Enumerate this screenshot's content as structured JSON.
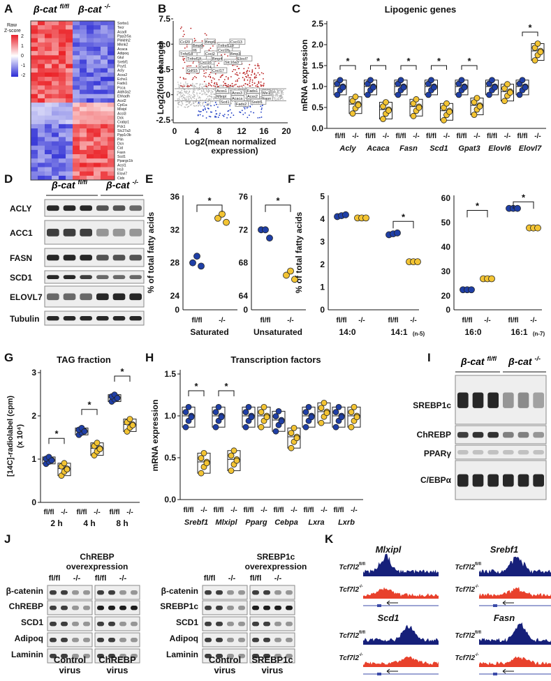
{
  "colors": {
    "flfl": "#1f3fa6",
    "ko": "#f3c433",
    "red": "#e01f26",
    "blue": "#1636c2",
    "heat_hi": "#e8202a",
    "heat_lo": "#2b2bd6",
    "mid": "#ffffff"
  },
  "panel_labels": {
    "A": "A",
    "B": "B",
    "C": "C",
    "D": "D",
    "E": "E",
    "F": "F",
    "G": "G",
    "H": "H",
    "I": "I",
    "J": "J",
    "K": "K"
  },
  "common": {
    "flfl": "fl/fl",
    "ko": "-/-",
    "beta_cat": "β-cat",
    "sup_flfl": "fl/fl",
    "sup_ko": "-/-",
    "star": "*"
  },
  "A": {
    "legend_title_1": "Raw",
    "legend_title_2": "Z-score",
    "legend_ticks": [
      "2",
      "1",
      "0",
      "-1",
      "-2"
    ],
    "genes": [
      "Sorbs1",
      "Tecr",
      "Acadl",
      "Ppp2r5a",
      "Plekhh2",
      "Mknk2",
      "Acaca",
      "Adipoq",
      "Glul",
      "Srebf1",
      "Pcyt1",
      "Acly",
      "Acss2",
      "Echs1",
      "Fads1",
      "Pcca",
      "Aldh3a2",
      "Ehhadh",
      "Acsl2",
      "Cpt1a",
      "Mlxipl",
      "Acsl3",
      "Dck",
      "Crabp1",
      "Pck1",
      "Slc27a3",
      "Ppp1r3b",
      "Plin",
      "Dcn",
      "Cat",
      "Fasn",
      "Scd1",
      "Ppargc1b",
      "Acsl1",
      "Irs3",
      "Elovl7",
      "Cidx"
    ]
  },
  "B": {
    "ylabel": "Log2(fold change)",
    "xlabel_1": "Log2(mean normalized",
    "xlabel_2": "expression)",
    "xticks": [
      "0",
      "4",
      "8",
      "12",
      "16",
      "20"
    ],
    "yticks": [
      "7.5",
      "5.0",
      "2.5",
      "0",
      "-2.5"
    ],
    "up_labels": [
      "Ccl20",
      "Bmp8",
      "Bmp6",
      "Tnfrsf11b",
      "Cxcl13",
      "Tnfsf18",
      "Il6",
      "Cxcl2",
      "Cxcl2b",
      "Bmp3",
      "Tnfrsf19",
      "Cxcl16",
      "Bmp4",
      "Slc16a3",
      "Elovl7",
      "Gdf15",
      "Cxcl14",
      "Cxcl17"
    ],
    "down_labels": [
      "Acss1",
      "Acss3",
      "Fads1",
      "Me1",
      "Mlxipl",
      "Acaca",
      "Acss2",
      "Fasn",
      "Scd1",
      "Fads2",
      "Srebf1"
    ]
  },
  "C": {
    "title": "Lipogenic genes",
    "ylabel": "mRNA expression",
    "yticks": [
      "2.5",
      "2.0",
      "1.5",
      "1.0",
      "0.5",
      "0.0"
    ],
    "genes": [
      "Acly",
      "Acaca",
      "Fasn",
      "Scd1",
      "Gpat3",
      "Elovl6",
      "Elovl7"
    ],
    "flfl_medians": [
      1.0,
      1.0,
      1.0,
      1.0,
      1.0,
      1.0,
      1.0
    ],
    "ko_medians": [
      0.58,
      0.45,
      0.52,
      0.42,
      0.55,
      0.88,
      1.85
    ],
    "sig": [
      true,
      true,
      true,
      true,
      true,
      false,
      true
    ]
  },
  "D": {
    "bands": [
      "ACLY",
      "ACC1",
      "FASN",
      "SCD1",
      "ELOVL7",
      "Tubulin"
    ]
  },
  "E": {
    "ylabel": "% of total fatty acids",
    "groups": [
      {
        "name": "Saturated",
        "yticks": [
          "36",
          "32",
          "28",
          "24",
          "0"
        ],
        "flfl": [
          28,
          28.8,
          27.6
        ],
        "ko": [
          33.4,
          33.9,
          32.9
        ]
      },
      {
        "name": "Unsaturated",
        "yticks": [
          "76",
          "72",
          "68",
          "64",
          "0"
        ],
        "flfl": [
          72,
          72,
          71
        ],
        "ko": [
          66.5,
          67,
          66
        ]
      }
    ]
  },
  "F": {
    "ylabel": "% of total fatty acids",
    "left_yticks": [
      "5",
      "4",
      "3",
      "2",
      "1",
      "0"
    ],
    "right_yticks": [
      "60",
      "50",
      "40",
      "30",
      "20",
      "0"
    ],
    "groups": [
      "14:0",
      "14:1",
      "16:0",
      "16:1"
    ],
    "group_subs": [
      "",
      "(n-5)",
      "",
      "(n-7)"
    ],
    "left_flfl": [
      4.15,
      3.35
    ],
    "left_ko": [
      4.05,
      2.12
    ],
    "right_flfl": [
      22.5,
      55.8
    ],
    "right_ko": [
      27,
      47.8
    ]
  },
  "G": {
    "title": "TAG fraction",
    "ylabel_1": "[14C]-radiolabel (cpm)",
    "ylabel_2": "(x 10⁴)",
    "yticks": [
      "3",
      "2",
      "1",
      "0"
    ],
    "times": [
      "2 h",
      "4 h",
      "8 h"
    ],
    "flfl_medians": [
      0.98,
      1.65,
      2.42
    ],
    "ko_medians": [
      0.78,
      1.25,
      1.8
    ]
  },
  "H": {
    "title": "Transcription factors",
    "ylabel": "mRNA expression",
    "yticks": [
      "1.5",
      "1.0",
      "0.5",
      "0.0"
    ],
    "genes": [
      "Srebf1",
      "Mlxipl",
      "Pparg",
      "Cebpa",
      "Lxra",
      "Lxrb"
    ],
    "flfl_medians": [
      1.0,
      1.0,
      1.0,
      0.95,
      1.0,
      1.0
    ],
    "ko_medians": [
      0.45,
      0.48,
      1.0,
      0.75,
      1.05,
      1.0
    ],
    "sig": [
      true,
      true,
      false,
      false,
      false,
      false
    ]
  },
  "I": {
    "bands": [
      "SREBP1c",
      "ChREBP",
      "PPARγ",
      "C/EBPα"
    ]
  },
  "J": {
    "left_title_1": "ChREBP",
    "left_title_2": "overexpression",
    "right_title_1": "SREBP1c",
    "right_title_2": "overexpression",
    "left_bands": [
      "β-catenin",
      "ChREBP",
      "SCD1",
      "Adipoq",
      "Laminin"
    ],
    "right_bands": [
      "β-catenin",
      "SREBP1c",
      "SCD1",
      "Adipoq",
      "Laminin"
    ],
    "left_virus": [
      "Control",
      "ChREBP"
    ],
    "right_virus": [
      "Control",
      "SREBP1c"
    ],
    "virus_word": "virus"
  },
  "K": {
    "genes": [
      "Mlxipl",
      "Srebf1",
      "Scd1",
      "Fasn"
    ],
    "track": "Tcf7l2"
  }
}
